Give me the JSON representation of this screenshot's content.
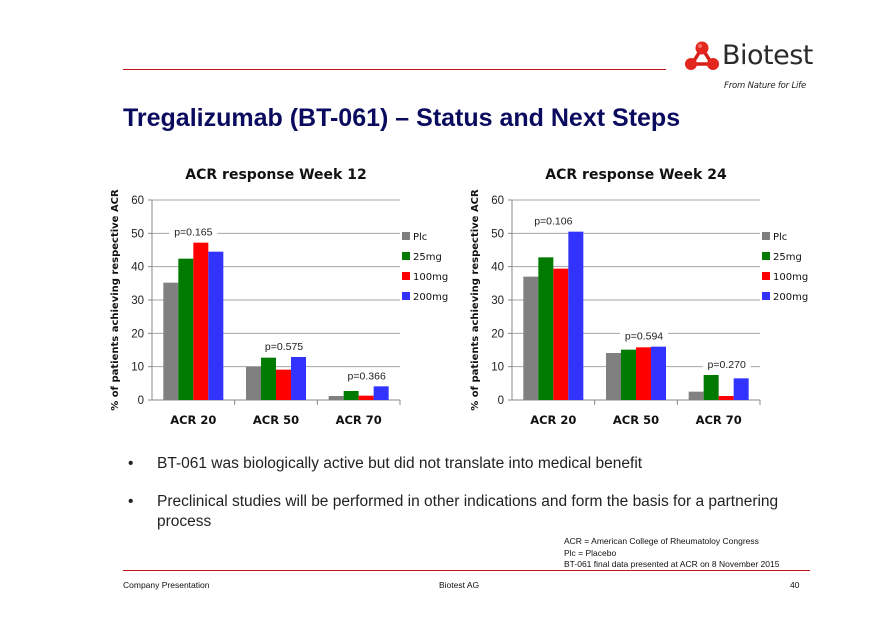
{
  "header": {
    "logo_text": "Biotest",
    "logo_tagline": "From Nature for Life",
    "title": "Tregalizumab (BT-061) – Status and Next Steps"
  },
  "colors": {
    "accent_rule": "#c0151b",
    "title": "#0a0a5e",
    "logo_red": "#e3261e"
  },
  "chart_data": [
    {
      "type": "bar",
      "title": "ACR response Week 12",
      "xlabel": "",
      "ylabel": "% of patients achieving respective ACR",
      "ylim": [
        0,
        60
      ],
      "yticks": [
        0,
        10,
        20,
        30,
        40,
        50,
        60
      ],
      "grid": true,
      "legend_position": "right",
      "categories": [
        "ACR 20",
        "ACR 50",
        "ACR 70"
      ],
      "series": [
        {
          "name": "Plc",
          "color": "#808080",
          "values": [
            35.2,
            10.0,
            1.2
          ]
        },
        {
          "name": "25mg",
          "color": "#007a00",
          "values": [
            42.4,
            12.7,
            2.7
          ]
        },
        {
          "name": "100mg",
          "color": "#ff0000",
          "values": [
            47.2,
            9.1,
            1.3
          ]
        },
        {
          "name": "200mg",
          "color": "#3333ff",
          "values": [
            44.5,
            12.9,
            4.1
          ]
        }
      ],
      "annotations": [
        "p=0.165",
        "p=0.575",
        "p=0.366"
      ]
    },
    {
      "type": "bar",
      "title": "ACR response Week 24",
      "xlabel": "",
      "ylabel": "% of patients achieving respective ACR",
      "ylim": [
        0,
        60
      ],
      "yticks": [
        0,
        10,
        20,
        30,
        40,
        50,
        60
      ],
      "grid": true,
      "legend_position": "right",
      "categories": [
        "ACR 20",
        "ACR 50",
        "ACR 70"
      ],
      "series": [
        {
          "name": "Plc",
          "color": "#808080",
          "values": [
            37.0,
            14.1,
            2.5
          ]
        },
        {
          "name": "25mg",
          "color": "#007a00",
          "values": [
            42.8,
            15.1,
            7.5
          ]
        },
        {
          "name": "100mg",
          "color": "#ff0000",
          "values": [
            39.4,
            15.8,
            1.2
          ]
        },
        {
          "name": "200mg",
          "color": "#3333ff",
          "values": [
            50.5,
            16.0,
            6.5
          ]
        }
      ],
      "annotations": [
        "p=0.106",
        "p=0.594",
        "p=0.270"
      ]
    }
  ],
  "bullets": [
    "BT-061 was biologically active but did not translate into medical benefit",
    "Preclinical studies will be performed in other indications and form the basis for a partnering process"
  ],
  "bullet_glyph": "•",
  "footnotes": [
    "ACR = American College of Rheumatoloy Congress",
    "Plc = Placebo",
    "BT-061 final data presented at ACR on 8 November 2015"
  ],
  "footer": {
    "left": "Company Presentation",
    "center": "Biotest AG",
    "page_number": "40"
  }
}
